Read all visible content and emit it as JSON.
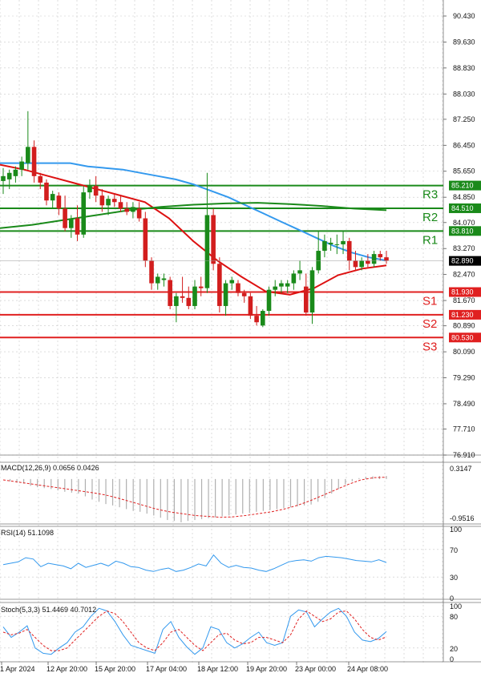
{
  "chart_data": {
    "type": "candlestick",
    "price_axis": {
      "ticks": [
        "90.430",
        "89.630",
        "88.830",
        "88.030",
        "87.250",
        "86.450",
        "85.650",
        "84.850",
        "84.070",
        "83.270",
        "82.470",
        "81.670",
        "80.890",
        "80.090",
        "79.290",
        "78.490",
        "77.710",
        "76.910"
      ],
      "min": 76.91,
      "max": 90.43
    },
    "current_price": {
      "label": "82.890",
      "value": 82.89,
      "color": "#000000"
    },
    "levels": [
      {
        "name": "R3",
        "value": 85.21,
        "label": "85.210",
        "color": "#1a8a1a"
      },
      {
        "name": "R2",
        "value": 84.51,
        "label": "84.510",
        "color": "#1a8a1a"
      },
      {
        "name": "R1",
        "value": 83.81,
        "label": "83.810",
        "color": "#1a8a1a"
      },
      {
        "name": "S1",
        "value": 81.93,
        "label": "81.930",
        "color": "#e02020"
      },
      {
        "name": "S2",
        "value": 81.23,
        "label": "81.230",
        "color": "#e02020"
      },
      {
        "name": "S3",
        "value": 80.53,
        "label": "80.530",
        "color": "#e02020"
      }
    ],
    "candles": [
      {
        "o": 85.35,
        "h": 85.75,
        "l": 84.95,
        "c": 85.5
      },
      {
        "o": 85.4,
        "h": 85.7,
        "l": 85.1,
        "c": 85.6
      },
      {
        "o": 85.5,
        "h": 85.8,
        "l": 85.3,
        "c": 85.7
      },
      {
        "o": 85.7,
        "h": 86.1,
        "l": 85.5,
        "c": 85.95
      },
      {
        "o": 85.9,
        "h": 87.5,
        "l": 85.7,
        "c": 86.4
      },
      {
        "o": 86.4,
        "h": 86.6,
        "l": 85.3,
        "c": 85.5
      },
      {
        "o": 85.5,
        "h": 85.6,
        "l": 85.1,
        "c": 85.3
      },
      {
        "o": 85.3,
        "h": 85.4,
        "l": 84.6,
        "c": 84.75
      },
      {
        "o": 84.75,
        "h": 85.05,
        "l": 84.5,
        "c": 84.95
      },
      {
        "o": 84.9,
        "h": 85.0,
        "l": 84.3,
        "c": 84.5
      },
      {
        "o": 84.5,
        "h": 84.9,
        "l": 83.8,
        "c": 83.9
      },
      {
        "o": 83.9,
        "h": 84.3,
        "l": 83.6,
        "c": 84.2
      },
      {
        "o": 84.2,
        "h": 84.6,
        "l": 83.5,
        "c": 83.7
      },
      {
        "o": 83.7,
        "h": 85.2,
        "l": 83.6,
        "c": 85.0
      },
      {
        "o": 85.0,
        "h": 85.4,
        "l": 84.8,
        "c": 85.2
      },
      {
        "o": 85.2,
        "h": 85.5,
        "l": 84.7,
        "c": 84.9
      },
      {
        "o": 84.9,
        "h": 85.1,
        "l": 84.4,
        "c": 84.6
      },
      {
        "o": 84.6,
        "h": 84.9,
        "l": 84.3,
        "c": 84.8
      },
      {
        "o": 84.8,
        "h": 84.95,
        "l": 84.55,
        "c": 84.7
      },
      {
        "o": 84.7,
        "h": 84.9,
        "l": 84.4,
        "c": 84.5
      },
      {
        "o": 84.5,
        "h": 84.7,
        "l": 84.3,
        "c": 84.4
      },
      {
        "o": 84.4,
        "h": 84.7,
        "l": 84.2,
        "c": 84.55
      },
      {
        "o": 84.5,
        "h": 84.7,
        "l": 84.1,
        "c": 84.2
      },
      {
        "o": 84.2,
        "h": 84.4,
        "l": 82.7,
        "c": 82.9
      },
      {
        "o": 82.9,
        "h": 83.0,
        "l": 82.0,
        "c": 82.2
      },
      {
        "o": 82.2,
        "h": 82.5,
        "l": 82.0,
        "c": 82.4
      },
      {
        "o": 82.3,
        "h": 82.5,
        "l": 82.1,
        "c": 82.35
      },
      {
        "o": 82.3,
        "h": 82.4,
        "l": 81.4,
        "c": 81.5
      },
      {
        "o": 81.5,
        "h": 81.9,
        "l": 81.0,
        "c": 81.8
      },
      {
        "o": 81.8,
        "h": 82.4,
        "l": 81.6,
        "c": 81.75
      },
      {
        "o": 81.75,
        "h": 82.1,
        "l": 81.4,
        "c": 81.5
      },
      {
        "o": 81.5,
        "h": 82.3,
        "l": 81.4,
        "c": 82.1
      },
      {
        "o": 82.1,
        "h": 82.4,
        "l": 81.8,
        "c": 82.05
      },
      {
        "o": 82.05,
        "h": 85.6,
        "l": 81.9,
        "c": 84.3
      },
      {
        "o": 84.3,
        "h": 84.5,
        "l": 82.6,
        "c": 82.8
      },
      {
        "o": 82.8,
        "h": 83.0,
        "l": 81.3,
        "c": 81.5
      },
      {
        "o": 81.5,
        "h": 82.3,
        "l": 81.2,
        "c": 82.2
      },
      {
        "o": 82.2,
        "h": 82.4,
        "l": 82.0,
        "c": 82.3
      },
      {
        "o": 82.2,
        "h": 82.3,
        "l": 81.8,
        "c": 81.9
      },
      {
        "o": 81.9,
        "h": 82.0,
        "l": 81.6,
        "c": 81.8
      },
      {
        "o": 81.8,
        "h": 81.9,
        "l": 81.1,
        "c": 81.2
      },
      {
        "o": 81.2,
        "h": 81.5,
        "l": 80.9,
        "c": 81.0
      },
      {
        "o": 80.9,
        "h": 81.4,
        "l": 80.85,
        "c": 81.35
      },
      {
        "o": 81.35,
        "h": 82.1,
        "l": 81.2,
        "c": 82.0
      },
      {
        "o": 82.0,
        "h": 82.3,
        "l": 81.8,
        "c": 82.1
      },
      {
        "o": 82.1,
        "h": 82.3,
        "l": 81.9,
        "c": 82.2
      },
      {
        "o": 82.1,
        "h": 82.3,
        "l": 81.9,
        "c": 82.2
      },
      {
        "o": 82.2,
        "h": 82.6,
        "l": 82.0,
        "c": 82.5
      },
      {
        "o": 82.5,
        "h": 82.9,
        "l": 82.3,
        "c": 82.6
      },
      {
        "o": 82.1,
        "h": 82.5,
        "l": 81.2,
        "c": 81.3
      },
      {
        "o": 81.3,
        "h": 82.7,
        "l": 80.95,
        "c": 82.6
      },
      {
        "o": 82.6,
        "h": 83.8,
        "l": 82.5,
        "c": 83.2
      },
      {
        "o": 83.2,
        "h": 83.7,
        "l": 83.0,
        "c": 83.5
      },
      {
        "o": 83.4,
        "h": 83.6,
        "l": 83.2,
        "c": 83.45
      },
      {
        "o": 83.4,
        "h": 83.7,
        "l": 83.1,
        "c": 83.4
      },
      {
        "o": 83.4,
        "h": 83.8,
        "l": 83.1,
        "c": 83.5
      },
      {
        "o": 83.5,
        "h": 83.6,
        "l": 82.6,
        "c": 82.9
      },
      {
        "o": 82.9,
        "h": 83.2,
        "l": 82.6,
        "c": 82.7
      },
      {
        "o": 82.7,
        "h": 83.0,
        "l": 82.6,
        "c": 82.9
      },
      {
        "o": 82.9,
        "h": 83.1,
        "l": 82.7,
        "c": 82.8
      },
      {
        "o": 82.8,
        "h": 83.2,
        "l": 82.7,
        "c": 83.1
      },
      {
        "o": 83.1,
        "h": 83.2,
        "l": 82.9,
        "c": 83.0
      },
      {
        "o": 83.0,
        "h": 83.2,
        "l": 82.8,
        "c": 82.9
      }
    ],
    "time_labels": [
      "1 Apr 2024",
      "12 Apr 20:00",
      "15 Apr 20:00",
      "17 Apr 04:00",
      "18 Apr 12:00",
      "19 Apr 20:00",
      "23 Apr 00:00",
      "24 Apr 08:00"
    ],
    "moving_averages": [
      {
        "color": "#3399ee",
        "values": [
          85.9,
          85.9,
          85.9,
          85.9,
          85.9,
          85.8,
          85.75,
          85.7,
          85.6,
          85.5,
          85.4,
          85.25,
          85.05,
          84.85,
          84.6,
          84.35,
          84.1,
          83.85,
          83.6,
          83.35,
          83.15,
          83.0,
          82.9
        ]
      },
      {
        "color": "#dd1111",
        "values": [
          85.85,
          85.7,
          85.5,
          85.3,
          85.1,
          84.9,
          84.7,
          84.2,
          83.5,
          82.9,
          82.4,
          81.95,
          81.85,
          82.05,
          82.45,
          82.65,
          82.75
        ]
      },
      {
        "color": "#1a8a1a",
        "values": [
          83.9,
          84.0,
          84.15,
          84.3,
          84.45,
          84.55,
          84.62,
          84.66,
          84.68,
          84.64,
          84.58,
          84.5,
          84.45
        ]
      }
    ],
    "macd": {
      "label": "MACD(12,26,9) 0.0656 0.0426",
      "top_label": "0.3147",
      "bottom_label": "-0.9516",
      "max": 0.3147,
      "min": -0.9516,
      "hist": [
        0.0,
        -0.05,
        -0.08,
        -0.1,
        -0.15,
        -0.18,
        -0.2,
        -0.22,
        -0.25,
        -0.28,
        -0.3,
        -0.32,
        -0.38,
        -0.45,
        -0.5,
        -0.55,
        -0.58,
        -0.62,
        -0.66,
        -0.7,
        -0.72,
        -0.76,
        -0.8,
        -0.85,
        -0.9,
        -0.92,
        -0.95,
        -0.92,
        -0.9,
        -0.88,
        -0.86,
        -0.84,
        -0.82,
        -0.8,
        -0.78,
        -0.76,
        -0.74,
        -0.72,
        -0.7,
        -0.68,
        -0.66,
        -0.64,
        -0.62,
        -0.6,
        -0.58,
        -0.56,
        -0.5,
        -0.42,
        -0.32,
        -0.22,
        -0.12,
        -0.05,
        0.02,
        0.05,
        0.06,
        0.065,
        0.066
      ],
      "signal": [
        -0.02,
        -0.06,
        -0.1,
        -0.14,
        -0.18,
        -0.22,
        -0.26,
        -0.3,
        -0.35,
        -0.42,
        -0.5,
        -0.58,
        -0.66,
        -0.72,
        -0.76,
        -0.8,
        -0.82,
        -0.84,
        -0.83,
        -0.8,
        -0.76,
        -0.72,
        -0.66,
        -0.58,
        -0.48,
        -0.36,
        -0.24,
        -0.12,
        -0.02,
        0.03,
        0.04
      ]
    },
    "rsi": {
      "label": "RSI(14) 51.1098",
      "ticks": [
        "100",
        "70",
        "30",
        "0"
      ],
      "color": "#3399ee",
      "values": [
        48,
        50,
        52,
        58,
        56,
        45,
        50,
        48,
        46,
        42,
        50,
        44,
        47,
        50,
        46,
        53,
        50,
        45,
        44,
        40,
        38,
        41,
        43,
        38,
        40,
        44,
        49,
        46,
        62,
        50,
        44,
        47,
        44,
        43,
        40,
        38,
        42,
        47,
        52,
        54,
        55,
        53,
        58,
        60,
        59,
        58,
        56,
        54,
        53,
        52,
        55,
        51
      ]
    },
    "stoch": {
      "label": "Stoch(5,3,3) 51.4469 40.7012",
      "ticks": [
        "100",
        "80",
        "20",
        "0"
      ],
      "k_color": "#3399ee",
      "d_color": "#e02020",
      "k": [
        60,
        40,
        50,
        62,
        20,
        10,
        8,
        20,
        30,
        50,
        60,
        80,
        95,
        90,
        70,
        45,
        25,
        20,
        15,
        10,
        55,
        70,
        40,
        22,
        8,
        20,
        60,
        55,
        30,
        20,
        28,
        40,
        50,
        30,
        25,
        30,
        80,
        92,
        88,
        60,
        75,
        88,
        95,
        80,
        50,
        35,
        32,
        38,
        51
      ],
      "d": [
        50,
        45,
        48,
        55,
        40,
        25,
        15,
        15,
        20,
        35,
        50,
        65,
        80,
        90,
        85,
        70,
        50,
        30,
        20,
        15,
        30,
        50,
        55,
        40,
        25,
        15,
        30,
        45,
        48,
        35,
        28,
        30,
        40,
        40,
        35,
        30,
        45,
        75,
        90,
        80,
        70,
        75,
        88,
        90,
        75,
        55,
        40,
        35,
        41
      ]
    }
  }
}
